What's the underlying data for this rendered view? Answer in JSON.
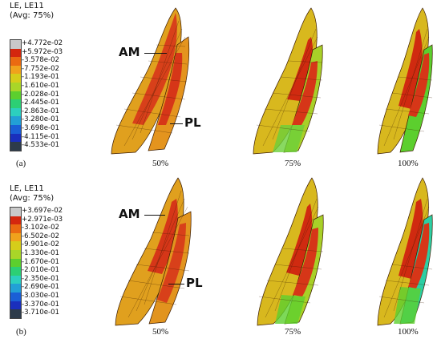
{
  "panel_a": {
    "legend_title": "LE, LE11",
    "legend_subtitle": "(Avg: 75%)",
    "legend_values": [
      "+4.772e-02",
      "+5.972e-03",
      "-3.578e-02",
      "-7.752e-02",
      "-1.193e-01",
      "-1.610e-01",
      "-2.028e-01",
      "-2.445e-01",
      "-2.863e-01",
      "-3.280e-01",
      "-3.698e-01",
      "-4.115e-01",
      "-4.533e-01"
    ],
    "label": "(a)",
    "percentages": [
      "50%",
      "75%",
      "100%"
    ],
    "bundle_labels": {
      "am": "AM",
      "pl": "PL"
    }
  },
  "panel_b": {
    "legend_title": "LE, LE11",
    "legend_subtitle": "(Avg: 75%)",
    "legend_values": [
      "+3.697e-02",
      "+2.971e-03",
      "-3.102e-02",
      "-6.502e-02",
      "-9.901e-02",
      "-1.330e-01",
      "-1.670e-01",
      "-2.010e-01",
      "-2.350e-01",
      "-2.690e-01",
      "-3.030e-01",
      "-3.370e-01",
      "-3.710e-01"
    ],
    "label": "(b)",
    "percentages": [
      "50%",
      "75%",
      "100%"
    ],
    "bundle_labels": {
      "am": "AM",
      "pl": "PL"
    }
  },
  "legend_colors": [
    "#c9c9c9",
    "#d4270e",
    "#ea6a11",
    "#f0a21c",
    "#d6cd1a",
    "#a9d628",
    "#5ccf2e",
    "#2ccf74",
    "#2ccfbe",
    "#22a0d6",
    "#1a5fd6",
    "#1a2fbd",
    "#2d3b4a"
  ]
}
